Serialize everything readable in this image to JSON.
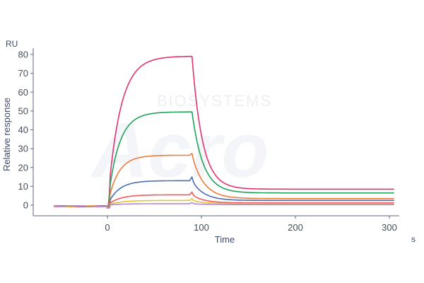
{
  "watermark": {
    "brand_small": "BIOSYSTEMS",
    "brand_large": "Acro"
  },
  "chart_data": {
    "type": "line",
    "title": "",
    "xlabel": "Time",
    "ylabel": "Relative response",
    "y_unit": "RU",
    "x_unit": "s",
    "xlim": [
      -70,
      310
    ],
    "ylim": [
      -5,
      83
    ],
    "x_ticks": [
      0,
      100,
      200,
      300
    ],
    "y_ticks": [
      0,
      10,
      20,
      30,
      40,
      50,
      60,
      70,
      80
    ],
    "grid": false,
    "legend": "none",
    "association_start": 0,
    "dissociation_start": 90,
    "series": [
      {
        "color": "#e0336f",
        "plateau": 79,
        "residual": 8.5,
        "ka": 0.075,
        "kd": 0.09,
        "spike": 0
      },
      {
        "color": "#21a35a",
        "plateau": 49.5,
        "residual": 6.5,
        "ka": 0.085,
        "kd": 0.085,
        "spike": 0
      },
      {
        "color": "#ee7a3c",
        "plateau": 26.5,
        "residual": 3.5,
        "ka": 0.09,
        "kd": 0.08,
        "spike": 1
      },
      {
        "color": "#4a6fb5",
        "plateau": 13,
        "residual": 2.5,
        "ka": 0.085,
        "kd": 0.08,
        "spike": 2
      },
      {
        "color": "#f05a5a",
        "plateau": 5.5,
        "residual": 1.2,
        "ka": 0.08,
        "kd": 0.08,
        "spike": 1.5
      },
      {
        "color": "#e8c233",
        "plateau": 2.5,
        "residual": 0.8,
        "ka": 0.075,
        "kd": 0.08,
        "spike": 1
      },
      {
        "color": "#b389d6",
        "plateau": 0.8,
        "residual": 0.3,
        "ka": 0.07,
        "kd": 0.08,
        "spike": 0.6
      }
    ]
  }
}
